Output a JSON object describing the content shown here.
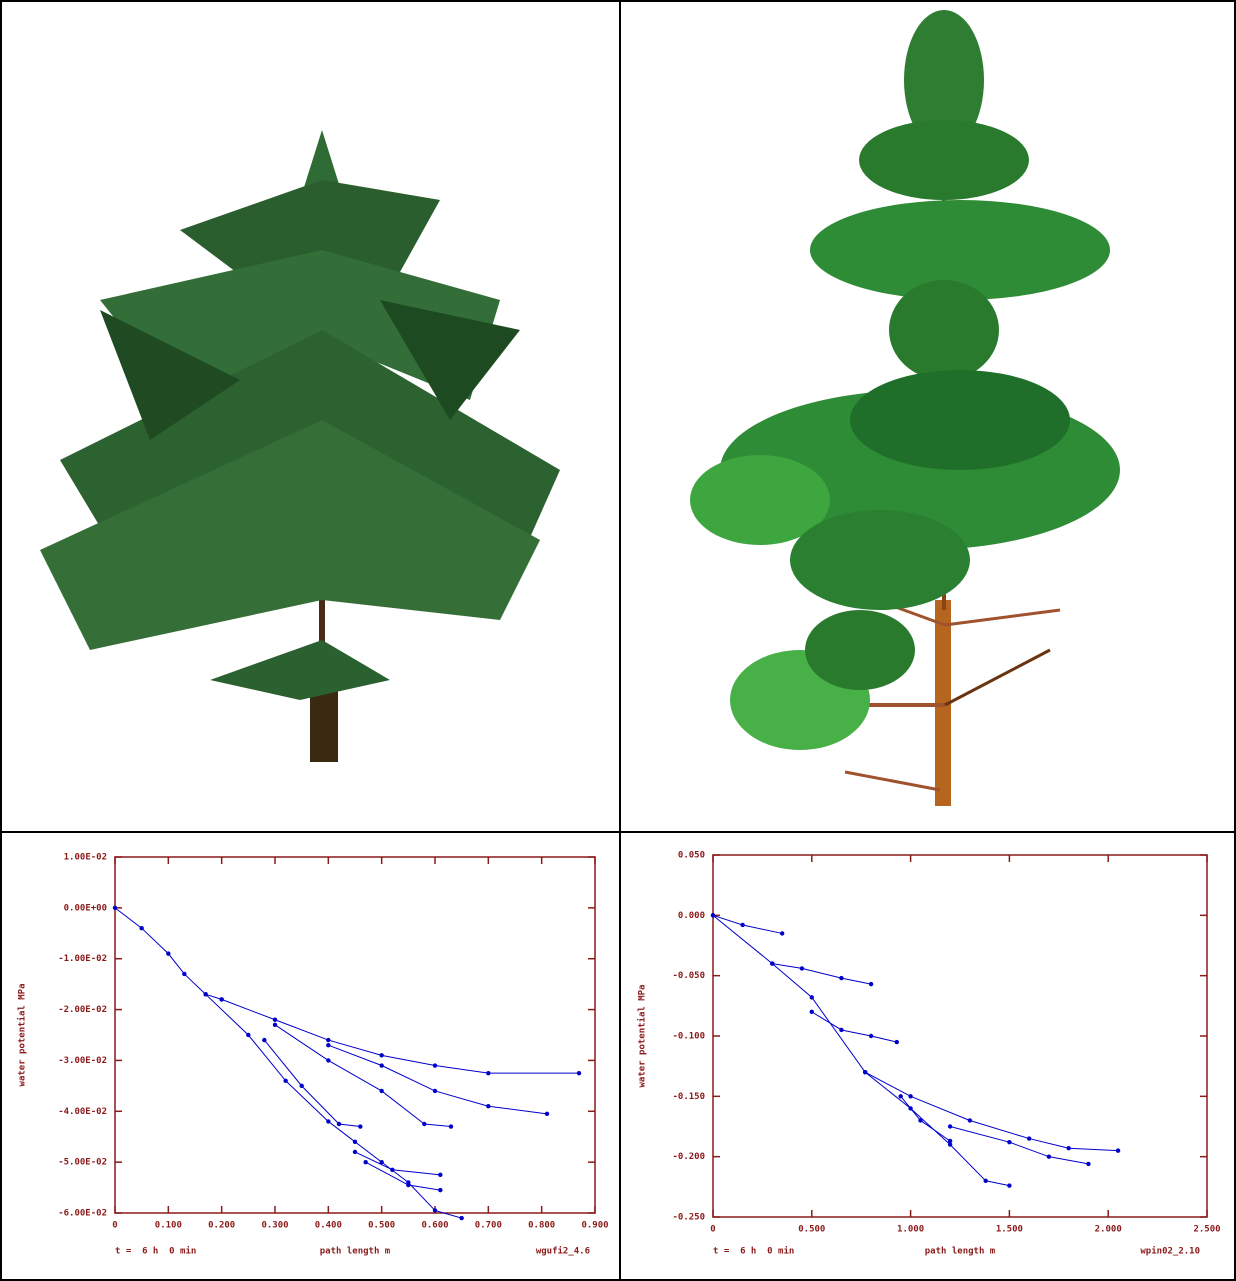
{
  "chart_data": [
    {
      "type": "line",
      "y_label": "water potential MPa",
      "x_label": "path length m",
      "footer_left": "t =  6 h  0 min",
      "footer_right": "wgufi2_4.6",
      "xlim": [
        0,
        0.9
      ],
      "xticks": [
        0,
        {
          "value": 0.1,
          "label": "0.100"
        },
        {
          "value": 0.2,
          "label": "0.200"
        },
        {
          "value": 0.3,
          "label": "0.300"
        },
        {
          "value": 0.4,
          "label": "0.400"
        },
        {
          "value": 0.5,
          "label": "0.500"
        },
        {
          "value": 0.6,
          "label": "0.600"
        },
        {
          "value": 0.7,
          "label": "0.700"
        },
        {
          "value": 0.8,
          "label": "0.800"
        },
        {
          "value": 0.9,
          "label": "0.900"
        }
      ],
      "ylim": [
        -0.06,
        0.01
      ],
      "yticks": [
        {
          "value": 0.01,
          "label": "1.00E-02"
        },
        {
          "value": 0,
          "label": "0.00E+00"
        },
        {
          "value": -0.01,
          "label": "-1.00E-02"
        },
        {
          "value": -0.02,
          "label": "-2.00E-02"
        },
        {
          "value": -0.03,
          "label": "-3.00E-02"
        },
        {
          "value": -0.04,
          "label": "-4.00E-02"
        },
        {
          "value": -0.05,
          "label": "-5.00E-02"
        },
        {
          "value": -0.06,
          "label": "-6.00E-02"
        }
      ],
      "series": [
        {
          "color": "#0000cc",
          "x": [
            0,
            0.05,
            0.1,
            0.13,
            0.17,
            0.2
          ],
          "values": [
            0,
            -0.004,
            -0.009,
            -0.013,
            -0.017,
            -0.018
          ]
        },
        {
          "color": "#0000cc",
          "x": [
            0.2,
            0.3,
            0.4,
            0.5,
            0.6,
            0.7,
            0.87
          ],
          "values": [
            -0.018,
            -0.022,
            -0.026,
            -0.029,
            -0.031,
            -0.0325,
            -0.0325
          ]
        },
        {
          "color": "#0000cc",
          "x": [
            0.4,
            0.5,
            0.6,
            0.7,
            0.81
          ],
          "values": [
            -0.027,
            -0.031,
            -0.036,
            -0.039,
            -0.0405
          ]
        },
        {
          "color": "#0000cc",
          "x": [
            0.3,
            0.4,
            0.5,
            0.58,
            0.63
          ],
          "values": [
            -0.023,
            -0.03,
            -0.036,
            -0.0425,
            -0.043
          ]
        },
        {
          "color": "#0000cc",
          "x": [
            0.17,
            0.25,
            0.32,
            0.4,
            0.45,
            0.5,
            0.55,
            0.6,
            0.65
          ],
          "values": [
            -0.017,
            -0.025,
            -0.034,
            -0.042,
            -0.046,
            -0.05,
            -0.054,
            -0.0595,
            -0.061
          ]
        },
        {
          "color": "#0000cc",
          "x": [
            0.28,
            0.35,
            0.42,
            0.46
          ],
          "values": [
            -0.026,
            -0.035,
            -0.0425,
            -0.043
          ]
        },
        {
          "color": "#0000cc",
          "x": [
            0.45,
            0.52,
            0.61
          ],
          "values": [
            -0.048,
            -0.0515,
            -0.0525
          ]
        },
        {
          "color": "#0000cc",
          "x": [
            0.47,
            0.55,
            0.61
          ],
          "values": [
            -0.05,
            -0.0545,
            -0.0555
          ]
        }
      ]
    },
    {
      "type": "line",
      "y_label": "water potential MPa",
      "x_label": "path length m",
      "footer_left": "t =  6 h  0 min",
      "footer_right": "wpin02_2.10",
      "xlim": [
        0,
        2.5
      ],
      "xticks": [
        0,
        {
          "value": 0.5,
          "label": "0.500"
        },
        {
          "value": 1,
          "label": "1.000"
        },
        {
          "value": 1.5,
          "label": "1.500"
        },
        {
          "value": 2,
          "label": "2.000"
        },
        {
          "value": 2.5,
          "label": "2.500"
        }
      ],
      "ylim": [
        -0.25,
        0.05
      ],
      "yticks": [
        {
          "value": 0.05,
          "label": "0.050"
        },
        {
          "value": 0,
          "label": "0.000"
        },
        {
          "value": -0.05,
          "label": "-0.050"
        },
        {
          "value": -0.1,
          "label": "-0.100"
        },
        {
          "value": -0.15,
          "label": "-0.150"
        },
        {
          "value": -0.2,
          "label": "-0.200"
        },
        {
          "value": -0.25,
          "label": "-0.250"
        }
      ],
      "series": [
        {
          "color": "#0000cc",
          "x": [
            0,
            0.3,
            0.5,
            0.77,
            1.0,
            1.2,
            1.38,
            1.5
          ],
          "values": [
            0,
            -0.04,
            -0.068,
            -0.13,
            -0.16,
            -0.19,
            -0.22,
            -0.224
          ]
        },
        {
          "color": "#0000cc",
          "x": [
            0,
            0.15,
            0.35
          ],
          "values": [
            0,
            -0.008,
            -0.015
          ]
        },
        {
          "color": "#0000cc",
          "x": [
            0.3,
            0.45,
            0.65,
            0.8
          ],
          "values": [
            -0.04,
            -0.044,
            -0.052,
            -0.057
          ]
        },
        {
          "color": "#0000cc",
          "x": [
            0.5,
            0.65,
            0.8,
            0.93
          ],
          "values": [
            -0.08,
            -0.095,
            -0.1,
            -0.105
          ]
        },
        {
          "color": "#0000cc",
          "x": [
            0.77,
            1.0,
            1.3,
            1.6,
            1.8,
            2.05
          ],
          "values": [
            -0.13,
            -0.15,
            -0.17,
            -0.185,
            -0.193,
            -0.195
          ]
        },
        {
          "color": "#0000cc",
          "x": [
            1.2,
            1.5,
            1.7,
            1.9
          ],
          "values": [
            -0.175,
            -0.188,
            -0.2,
            -0.206
          ]
        },
        {
          "color": "#0000cc",
          "x": [
            0.95,
            1.05,
            1.2
          ],
          "values": [
            -0.15,
            -0.17,
            -0.187
          ]
        }
      ]
    }
  ]
}
